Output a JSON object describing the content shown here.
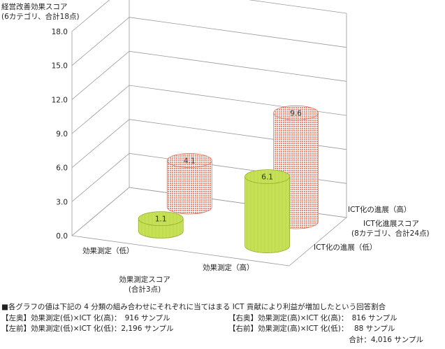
{
  "chart_data": {
    "type": "bar",
    "yaxis": {
      "label_line1": "経営改善効果スコア",
      "label_line2": "(6カテゴリ、合計18点)",
      "ticks": [
        "0.0",
        "3.0",
        "6.0",
        "9.0",
        "12.0",
        "15.0",
        "18.0"
      ],
      "range": [
        0,
        18
      ]
    },
    "xaxis": {
      "categories": [
        "効果測定（低）",
        "効果測定（高）"
      ],
      "label_line1": "効果測定スコア",
      "label_line2": "(合計3点)"
    },
    "zaxis": {
      "categories": [
        "ICT化の進展（低）",
        "ICT化の進展（高）"
      ],
      "label_line1": "ICT化進展スコア",
      "label_line2": "(8カテゴリ、合計24点)"
    },
    "bars": [
      {
        "effect": "効果測定（低）",
        "ict": "ICT化の進展（低）",
        "value": 1.1,
        "label": "1.1",
        "color": "#cce07a"
      },
      {
        "effect": "効果測定（低）",
        "ict": "ICT化の進展（高）",
        "value": 4.1,
        "label": "4.1",
        "color": "#f2a89a"
      },
      {
        "effect": "効果測定（高）",
        "ict": "ICT化の進展（低）",
        "value": 6.1,
        "label": "6.1",
        "color": "#cce07a"
      },
      {
        "effect": "効果測定（高）",
        "ict": "ICT化の進展（高）",
        "value": 9.6,
        "label": "9.6",
        "color": "#f2a89a"
      }
    ],
    "grid": true
  },
  "footer": {
    "headline": "■各グラフの値は下記の 4 分類の組み合わせにそれぞれに当てはまる ICT 貢献により利益が増加したという回答割合",
    "left_back": "【左奥】効果測定(低)×ICT 化(高)：　916 サンプル",
    "left_front": "【左前】効果測定(低)×ICT 化(低)：2,196 サンプル",
    "right_back": "【右奥】効果測定(高)×ICT 化(高)：　816 サンプル",
    "right_front": "【右前】効果測定(高)×ICT 化(低)：　 88 サンプル",
    "total": "合計：4,016 サンプル"
  }
}
